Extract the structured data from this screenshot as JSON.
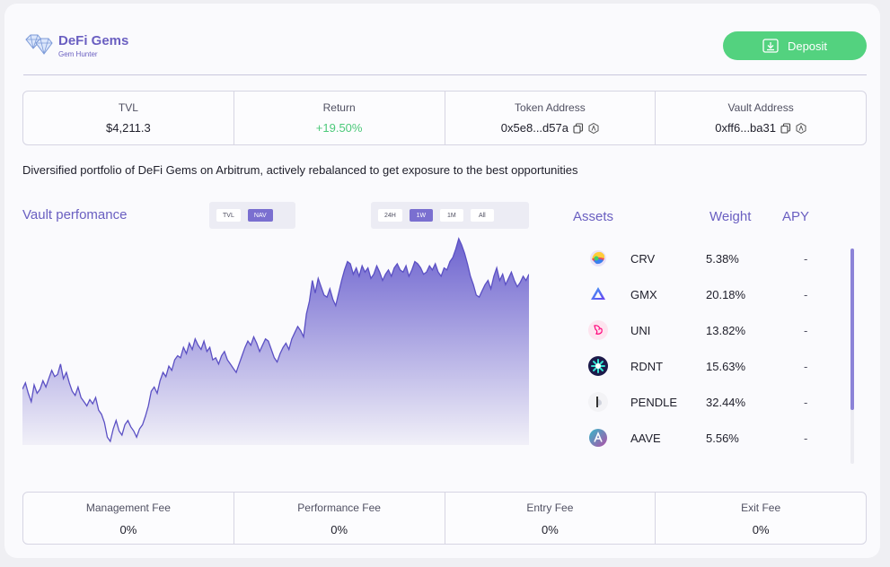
{
  "brand": {
    "name": "DeFi Gems",
    "subtitle": "Gem Hunter",
    "icon": "diamond-icon"
  },
  "deposit": {
    "label": "Deposit",
    "icon": "download-icon",
    "color": "#53d27f"
  },
  "stats": [
    {
      "label": "TVL",
      "value": "$4,211.3"
    },
    {
      "label": "Return",
      "value": "+19.50%"
    },
    {
      "label": "Token Address",
      "value": "0x5e8...d57a"
    },
    {
      "label": "Vault Address",
      "value": "0xff6...ba31"
    }
  ],
  "description": "Diversified portfolio of DeFi Gems on Arbitrum, actively rebalanced to get exposure to the best opportunities",
  "performance": {
    "title": "Vault perfomance",
    "metric_tabs": [
      "TVL",
      "NAV"
    ],
    "metric_selected": "NAV",
    "range_tabs": [
      "24H",
      "1W",
      "1M",
      "All"
    ],
    "range_selected": "1W"
  },
  "chart_data": {
    "type": "area",
    "title": "Vault perfomance",
    "series": [
      {
        "name": "NAV",
        "values": [
          0.28,
          0.31,
          0.26,
          0.22,
          0.3,
          0.26,
          0.28,
          0.32,
          0.29,
          0.33,
          0.37,
          0.34,
          0.35,
          0.4,
          0.33,
          0.36,
          0.31,
          0.27,
          0.25,
          0.29,
          0.24,
          0.22,
          0.2,
          0.23,
          0.21,
          0.24,
          0.18,
          0.16,
          0.12,
          0.05,
          0.03,
          0.09,
          0.13,
          0.08,
          0.06,
          0.11,
          0.13,
          0.1,
          0.08,
          0.05,
          0.09,
          0.11,
          0.15,
          0.2,
          0.27,
          0.29,
          0.26,
          0.32,
          0.36,
          0.34,
          0.39,
          0.37,
          0.42,
          0.44,
          0.43,
          0.48,
          0.45,
          0.5,
          0.47,
          0.52,
          0.49,
          0.47,
          0.51,
          0.46,
          0.48,
          0.42,
          0.43,
          0.4,
          0.44,
          0.46,
          0.42,
          0.4,
          0.38,
          0.36,
          0.4,
          0.44,
          0.48,
          0.51,
          0.49,
          0.53,
          0.5,
          0.46,
          0.49,
          0.52,
          0.51,
          0.47,
          0.43,
          0.41,
          0.45,
          0.48,
          0.5,
          0.47,
          0.52,
          0.55,
          0.58,
          0.56,
          0.53,
          0.64,
          0.7,
          0.8,
          0.74,
          0.81,
          0.77,
          0.73,
          0.72,
          0.76,
          0.71,
          0.68,
          0.74,
          0.8,
          0.85,
          0.89,
          0.88,
          0.83,
          0.86,
          0.82,
          0.87,
          0.84,
          0.86,
          0.81,
          0.83,
          0.87,
          0.84,
          0.8,
          0.83,
          0.85,
          0.82,
          0.86,
          0.88,
          0.85,
          0.84,
          0.87,
          0.82,
          0.85,
          0.89,
          0.88,
          0.86,
          0.83,
          0.84,
          0.87,
          0.85,
          0.88,
          0.84,
          0.82,
          0.86,
          0.85,
          0.89,
          0.91,
          0.95,
          1.0,
          0.97,
          0.93,
          0.88,
          0.82,
          0.78,
          0.73,
          0.72,
          0.75,
          0.78,
          0.8,
          0.76,
          0.82,
          0.86,
          0.8,
          0.83,
          0.78,
          0.81,
          0.84,
          0.8,
          0.77,
          0.79,
          0.82,
          0.8,
          0.83
        ]
      }
    ],
    "xlabel": "",
    "ylabel": "",
    "grid": false,
    "fill": "gradient",
    "color": "#5b50c4"
  },
  "assets": {
    "headers": {
      "asset": "Assets",
      "weight": "Weight",
      "apy": "APY"
    },
    "rows": [
      {
        "name": "CRV",
        "weight": "5.38%",
        "apy": "-",
        "icon": "crv-icon"
      },
      {
        "name": "GMX",
        "weight": "20.18%",
        "apy": "-",
        "icon": "gmx-icon"
      },
      {
        "name": "UNI",
        "weight": "13.82%",
        "apy": "-",
        "icon": "uni-icon"
      },
      {
        "name": "RDNT",
        "weight": "15.63%",
        "apy": "-",
        "icon": "rdnt-icon"
      },
      {
        "name": "PENDLE",
        "weight": "32.44%",
        "apy": "-",
        "icon": "pendle-icon"
      },
      {
        "name": "AAVE",
        "weight": "5.56%",
        "apy": "-",
        "icon": "aave-icon"
      }
    ]
  },
  "fees": [
    {
      "label": "Management Fee",
      "value": "0%"
    },
    {
      "label": "Performance Fee",
      "value": "0%"
    },
    {
      "label": "Entry Fee",
      "value": "0%"
    },
    {
      "label": "Exit Fee",
      "value": "0%"
    }
  ],
  "colors": {
    "accent": "#6a5fc1",
    "positive": "#4cc97a",
    "deposit": "#53d27f"
  }
}
